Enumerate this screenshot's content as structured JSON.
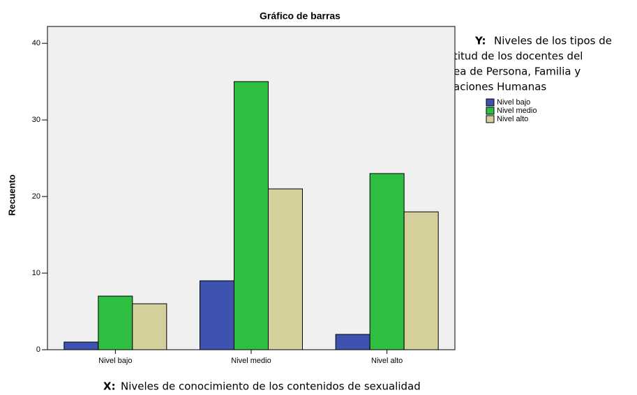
{
  "chart_data": {
    "type": "bar",
    "title": "Gráfico de barras",
    "y_label": "Recuento",
    "categories": [
      "Nivel bajo",
      "Nivel medio",
      "Nivel alto"
    ],
    "series": [
      {
        "name": "Nivel bajo",
        "color": "#3e53b0",
        "values": [
          1,
          9,
          2
        ]
      },
      {
        "name": "Nivel medio",
        "color": "#2fbe42",
        "values": [
          7,
          35,
          23
        ]
      },
      {
        "name": "Nivel alto",
        "color": "#d5d09b",
        "values": [
          6,
          21,
          18
        ]
      }
    ],
    "ylim": [
      0,
      42.2
    ],
    "yticks": [
      0,
      10,
      20,
      30,
      40
    ],
    "legend": "right",
    "y_note": {
      "label": "Y:",
      "lines": [
        "Niveles de los tipos de",
        "titud de los docentes del",
        "ea de Persona, Familia y",
        "aciones Humanas"
      ]
    },
    "x_note": {
      "label": "X:",
      "text": "Niveles de conocimiento de los contenidos de sexualidad"
    }
  }
}
